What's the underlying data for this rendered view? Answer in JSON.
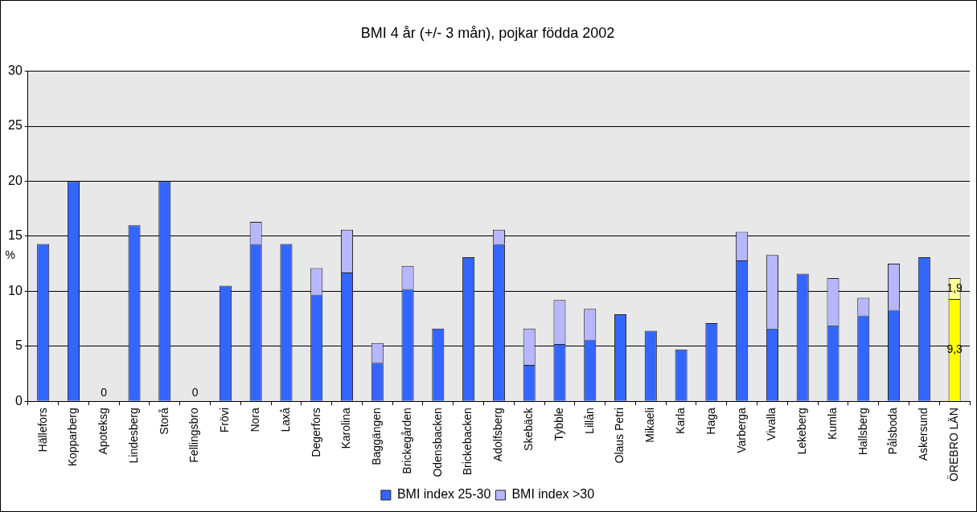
{
  "chart_data": {
    "type": "bar",
    "title": "BMI 4 år (+/- 3 mån), pojkar födda 2002",
    "ylabel": "%",
    "stacked": true,
    "grid": "y",
    "legend": "bottom",
    "categories": [
      "Hällefors",
      "Kopparberg",
      "Apoteksg",
      "Lindesberg",
      "Storå",
      "Fellingsbro",
      "Frövi",
      "Nora",
      "Laxå",
      "Degerfors",
      "Karolina",
      "Baggängen",
      "Brickegården",
      "Odensbacken",
      "Brickebacken",
      "Adolfsberg",
      "Skebäck",
      "Tybble",
      "Lillån",
      "Olaus Petri",
      "Mikaeli",
      "Karla",
      "Haga",
      "Varberga",
      "Vivalla",
      "Lekeberg",
      "Kumla",
      "Hallsberg",
      "Pålsboda",
      "Askersund",
      "ÖREBRO LÄN"
    ],
    "ylim": [
      0,
      30
    ],
    "yticks": [
      0,
      5,
      10,
      15,
      20,
      25,
      30
    ],
    "series": [
      {
        "name": "BMI index 25-30",
        "color": "#3366ff",
        "colors": [
          "#3366ff",
          "#3366ff",
          "#3366ff",
          "#3366ff",
          "#3366ff",
          "#3366ff",
          "#3366ff",
          "#3366ff",
          "#3366ff",
          "#3366ff",
          "#3366ff",
          "#3366ff",
          "#3366ff",
          "#3366ff",
          "#3366ff",
          "#3366ff",
          "#3366ff",
          "#3366ff",
          "#3366ff",
          "#3366ff",
          "#3366ff",
          "#3366ff",
          "#3366ff",
          "#3366ff",
          "#3366ff",
          "#3366ff",
          "#3366ff",
          "#3366ff",
          "#3366ff",
          "#3366ff",
          "#ffff00"
        ],
        "values": [
          14.3,
          20.0,
          0,
          16.0,
          20.0,
          0,
          10.5,
          14.3,
          14.3,
          9.7,
          11.7,
          3.5,
          10.2,
          6.6,
          13.1,
          14.3,
          3.3,
          5.2,
          5.6,
          7.9,
          6.4,
          4.7,
          7.1,
          12.8,
          6.6,
          11.6,
          6.9,
          7.8,
          8.3,
          13.1,
          9.3
        ],
        "value_labels": [
          null,
          null,
          "0",
          null,
          null,
          "0",
          null,
          null,
          null,
          null,
          null,
          null,
          null,
          null,
          null,
          null,
          null,
          null,
          null,
          null,
          null,
          null,
          null,
          null,
          null,
          null,
          null,
          null,
          null,
          null,
          "9,3"
        ]
      },
      {
        "name": "BMI index >30",
        "color": "#b7b7ff",
        "colors": [
          "#b7b7ff",
          "#b7b7ff",
          "#b7b7ff",
          "#b7b7ff",
          "#b7b7ff",
          "#b7b7ff",
          "#b7b7ff",
          "#b7b7ff",
          "#b7b7ff",
          "#b7b7ff",
          "#b7b7ff",
          "#b7b7ff",
          "#b7b7ff",
          "#b7b7ff",
          "#b7b7ff",
          "#b7b7ff",
          "#b7b7ff",
          "#b7b7ff",
          "#b7b7ff",
          "#b7b7ff",
          "#b7b7ff",
          "#b7b7ff",
          "#b7b7ff",
          "#b7b7ff",
          "#b7b7ff",
          "#b7b7ff",
          "#b7b7ff",
          "#b7b7ff",
          "#b7b7ff",
          "#b7b7ff",
          "#ffff99"
        ],
        "values": [
          0,
          0,
          0,
          0,
          0,
          0,
          0,
          2.0,
          0,
          2.4,
          3.9,
          1.8,
          2.1,
          0,
          0,
          1.3,
          3.3,
          4.0,
          2.8,
          0,
          0,
          0,
          0,
          2.6,
          6.7,
          0,
          4.3,
          1.6,
          4.2,
          0,
          1.9
        ],
        "value_labels": [
          null,
          null,
          null,
          null,
          null,
          null,
          null,
          null,
          null,
          null,
          null,
          null,
          null,
          null,
          null,
          null,
          null,
          null,
          null,
          null,
          null,
          null,
          null,
          null,
          null,
          null,
          null,
          null,
          null,
          null,
          "1,9"
        ]
      }
    ]
  }
}
